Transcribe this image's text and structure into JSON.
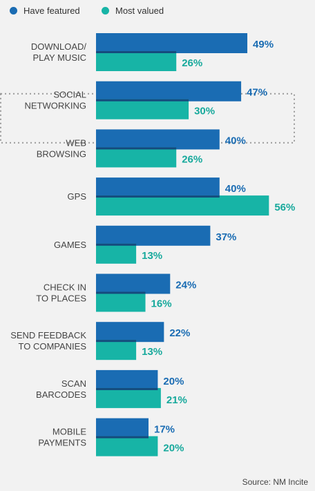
{
  "legend": {
    "featured_label": "Have featured",
    "valued_label": "Most valued"
  },
  "source": "Source: NM Incite",
  "colors": {
    "featured": "#1a6cb3",
    "valued": "#17b4a6",
    "overlap": "#154b7d",
    "label": "#1a6cb3",
    "valued_label": "#17a99c"
  },
  "chart_data": {
    "type": "bar",
    "orientation": "horizontal",
    "categories": [
      [
        "DOWNLOAD/",
        "PLAY MUSIC"
      ],
      [
        "SOCIAL",
        "NETWORKING"
      ],
      [
        "WEB",
        "BROWSING"
      ],
      [
        "GPS"
      ],
      [
        "GAMES"
      ],
      [
        "CHECK IN",
        "TO PLACES"
      ],
      [
        "SEND FEEDBACK",
        "TO COMPANIES"
      ],
      [
        "SCAN",
        "BARCODES"
      ],
      [
        "MOBILE",
        "PAYMENTS"
      ]
    ],
    "series": [
      {
        "name": "Have featured",
        "values": [
          49,
          47,
          40,
          40,
          37,
          24,
          22,
          20,
          17
        ]
      },
      {
        "name": "Most valued",
        "values": [
          26,
          30,
          26,
          56,
          13,
          16,
          13,
          21,
          20
        ]
      }
    ],
    "value_format": "{v}%",
    "highlighted_category": [
      "SOCIAL",
      "NETWORKING"
    ]
  }
}
